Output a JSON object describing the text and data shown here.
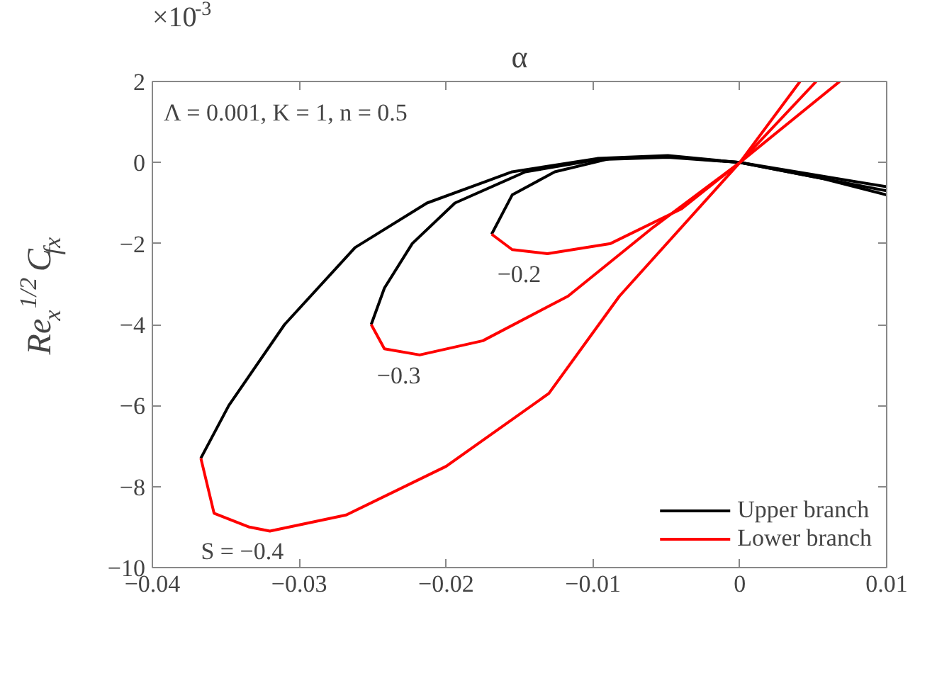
{
  "chart_data": {
    "type": "line",
    "xlabel": "α",
    "ylabel": "Re$_{x}$$^{1/2}$C$_{fx}$",
    "xlim": [
      -0.04,
      0.01
    ],
    "ylim": [
      -10,
      2
    ],
    "xticks": [
      -0.04,
      -0.03,
      -0.02,
      -0.01,
      0,
      0.01
    ],
    "yticks": [
      -10,
      -8,
      -6,
      -4,
      -2,
      0,
      2
    ],
    "grid": false,
    "legend": "bottom right",
    "line_style": "solid",
    "annotations": [
      "×10$^{-3}$",
      "Λ = 0.001, K = 1, n = 0.5",
      "S = −0.4",
      "−0.3",
      "−0.2"
    ],
    "series": [
      {
        "name": "Upper branch",
        "color": "#000000",
        "x": [
          -0.0367,
          -0.0348,
          -0.031,
          -0.0262,
          -0.0213,
          -0.0155,
          -0.0097,
          -0.0049,
          0,
          0.0057,
          0.01
        ],
        "values": [
          -7.3,
          -6.0,
          -4.0,
          -2.1,
          -1.0,
          -0.23,
          0.1,
          0.17,
          0,
          -0.4,
          -0.8
        ]
      },
      {
        "name": "Lower branch",
        "color": "#ff0000",
        "x": [
          -0.0367,
          -0.0358,
          -0.0334,
          -0.032,
          -0.0268,
          -0.02,
          -0.013,
          -0.0082,
          0,
          0.0041
        ],
        "values": [
          -7.3,
          -8.66,
          -9.0,
          -9.1,
          -8.7,
          -7.5,
          -5.7,
          -3.3,
          0,
          2
        ]
      },
      {
        "color": "#000000",
        "x": [
          -0.0251,
          -0.0242,
          -0.0223,
          -0.0194,
          -0.0146,
          -0.0097,
          -0.0049,
          0,
          0.01
        ],
        "values": [
          -4.0,
          -3.1,
          -2.0,
          -1.0,
          -0.23,
          0.07,
          0.13,
          0,
          -0.7
        ]
      },
      {
        "color": "#ff0000",
        "x": [
          -0.0251,
          -0.0242,
          -0.0218,
          -0.0175,
          -0.0117,
          -0.0059,
          0,
          0.0052
        ],
        "values": [
          -4.0,
          -4.6,
          -4.75,
          -4.4,
          -3.3,
          -1.6,
          0,
          2
        ]
      },
      {
        "color": "#000000",
        "x": [
          -0.0169,
          -0.0155,
          -0.0126,
          -0.0088,
          -0.0049,
          0,
          0.01
        ],
        "values": [
          -1.77,
          -0.8,
          -0.23,
          0.1,
          0.15,
          0,
          -0.6
        ]
      },
      {
        "color": "#ff0000",
        "x": [
          -0.0169,
          -0.0155,
          -0.0131,
          -0.0088,
          -0.004,
          0,
          0.0068
        ],
        "values": [
          -1.77,
          -2.15,
          -2.25,
          -2.0,
          -1.15,
          0,
          2
        ]
      }
    ]
  }
}
